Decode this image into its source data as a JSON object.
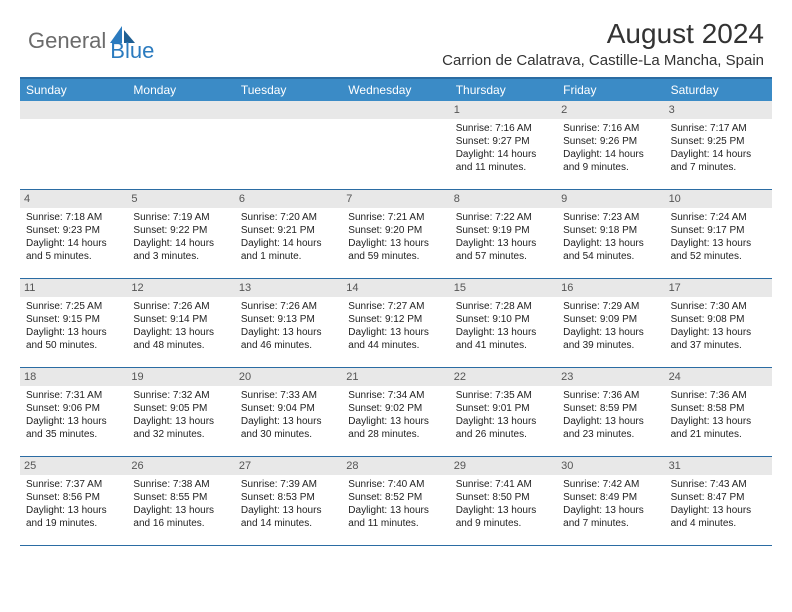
{
  "brand": {
    "part1": "General",
    "part2": "Blue"
  },
  "title": "August 2024",
  "location": "Carrion de Calatrava, Castille-La Mancha, Spain",
  "colors": {
    "header_bg": "#3b8bc6",
    "border": "#2b6ca3",
    "daynum_bg": "#e8e8e8",
    "logo_gray": "#6b6b6b",
    "logo_blue": "#2b7bbf"
  },
  "weekdays": [
    "Sunday",
    "Monday",
    "Tuesday",
    "Wednesday",
    "Thursday",
    "Friday",
    "Saturday"
  ],
  "weeks": [
    [
      {
        "n": "",
        "sunrise": "",
        "sunset": "",
        "daylight": ""
      },
      {
        "n": "",
        "sunrise": "",
        "sunset": "",
        "daylight": ""
      },
      {
        "n": "",
        "sunrise": "",
        "sunset": "",
        "daylight": ""
      },
      {
        "n": "",
        "sunrise": "",
        "sunset": "",
        "daylight": ""
      },
      {
        "n": "1",
        "sunrise": "7:16 AM",
        "sunset": "9:27 PM",
        "daylight": "14 hours and 11 minutes."
      },
      {
        "n": "2",
        "sunrise": "7:16 AM",
        "sunset": "9:26 PM",
        "daylight": "14 hours and 9 minutes."
      },
      {
        "n": "3",
        "sunrise": "7:17 AM",
        "sunset": "9:25 PM",
        "daylight": "14 hours and 7 minutes."
      }
    ],
    [
      {
        "n": "4",
        "sunrise": "7:18 AM",
        "sunset": "9:23 PM",
        "daylight": "14 hours and 5 minutes."
      },
      {
        "n": "5",
        "sunrise": "7:19 AM",
        "sunset": "9:22 PM",
        "daylight": "14 hours and 3 minutes."
      },
      {
        "n": "6",
        "sunrise": "7:20 AM",
        "sunset": "9:21 PM",
        "daylight": "14 hours and 1 minute."
      },
      {
        "n": "7",
        "sunrise": "7:21 AM",
        "sunset": "9:20 PM",
        "daylight": "13 hours and 59 minutes."
      },
      {
        "n": "8",
        "sunrise": "7:22 AM",
        "sunset": "9:19 PM",
        "daylight": "13 hours and 57 minutes."
      },
      {
        "n": "9",
        "sunrise": "7:23 AM",
        "sunset": "9:18 PM",
        "daylight": "13 hours and 54 minutes."
      },
      {
        "n": "10",
        "sunrise": "7:24 AM",
        "sunset": "9:17 PM",
        "daylight": "13 hours and 52 minutes."
      }
    ],
    [
      {
        "n": "11",
        "sunrise": "7:25 AM",
        "sunset": "9:15 PM",
        "daylight": "13 hours and 50 minutes."
      },
      {
        "n": "12",
        "sunrise": "7:26 AM",
        "sunset": "9:14 PM",
        "daylight": "13 hours and 48 minutes."
      },
      {
        "n": "13",
        "sunrise": "7:26 AM",
        "sunset": "9:13 PM",
        "daylight": "13 hours and 46 minutes."
      },
      {
        "n": "14",
        "sunrise": "7:27 AM",
        "sunset": "9:12 PM",
        "daylight": "13 hours and 44 minutes."
      },
      {
        "n": "15",
        "sunrise": "7:28 AM",
        "sunset": "9:10 PM",
        "daylight": "13 hours and 41 minutes."
      },
      {
        "n": "16",
        "sunrise": "7:29 AM",
        "sunset": "9:09 PM",
        "daylight": "13 hours and 39 minutes."
      },
      {
        "n": "17",
        "sunrise": "7:30 AM",
        "sunset": "9:08 PM",
        "daylight": "13 hours and 37 minutes."
      }
    ],
    [
      {
        "n": "18",
        "sunrise": "7:31 AM",
        "sunset": "9:06 PM",
        "daylight": "13 hours and 35 minutes."
      },
      {
        "n": "19",
        "sunrise": "7:32 AM",
        "sunset": "9:05 PM",
        "daylight": "13 hours and 32 minutes."
      },
      {
        "n": "20",
        "sunrise": "7:33 AM",
        "sunset": "9:04 PM",
        "daylight": "13 hours and 30 minutes."
      },
      {
        "n": "21",
        "sunrise": "7:34 AM",
        "sunset": "9:02 PM",
        "daylight": "13 hours and 28 minutes."
      },
      {
        "n": "22",
        "sunrise": "7:35 AM",
        "sunset": "9:01 PM",
        "daylight": "13 hours and 26 minutes."
      },
      {
        "n": "23",
        "sunrise": "7:36 AM",
        "sunset": "8:59 PM",
        "daylight": "13 hours and 23 minutes."
      },
      {
        "n": "24",
        "sunrise": "7:36 AM",
        "sunset": "8:58 PM",
        "daylight": "13 hours and 21 minutes."
      }
    ],
    [
      {
        "n": "25",
        "sunrise": "7:37 AM",
        "sunset": "8:56 PM",
        "daylight": "13 hours and 19 minutes."
      },
      {
        "n": "26",
        "sunrise": "7:38 AM",
        "sunset": "8:55 PM",
        "daylight": "13 hours and 16 minutes."
      },
      {
        "n": "27",
        "sunrise": "7:39 AM",
        "sunset": "8:53 PM",
        "daylight": "13 hours and 14 minutes."
      },
      {
        "n": "28",
        "sunrise": "7:40 AM",
        "sunset": "8:52 PM",
        "daylight": "13 hours and 11 minutes."
      },
      {
        "n": "29",
        "sunrise": "7:41 AM",
        "sunset": "8:50 PM",
        "daylight": "13 hours and 9 minutes."
      },
      {
        "n": "30",
        "sunrise": "7:42 AM",
        "sunset": "8:49 PM",
        "daylight": "13 hours and 7 minutes."
      },
      {
        "n": "31",
        "sunrise": "7:43 AM",
        "sunset": "8:47 PM",
        "daylight": "13 hours and 4 minutes."
      }
    ]
  ]
}
